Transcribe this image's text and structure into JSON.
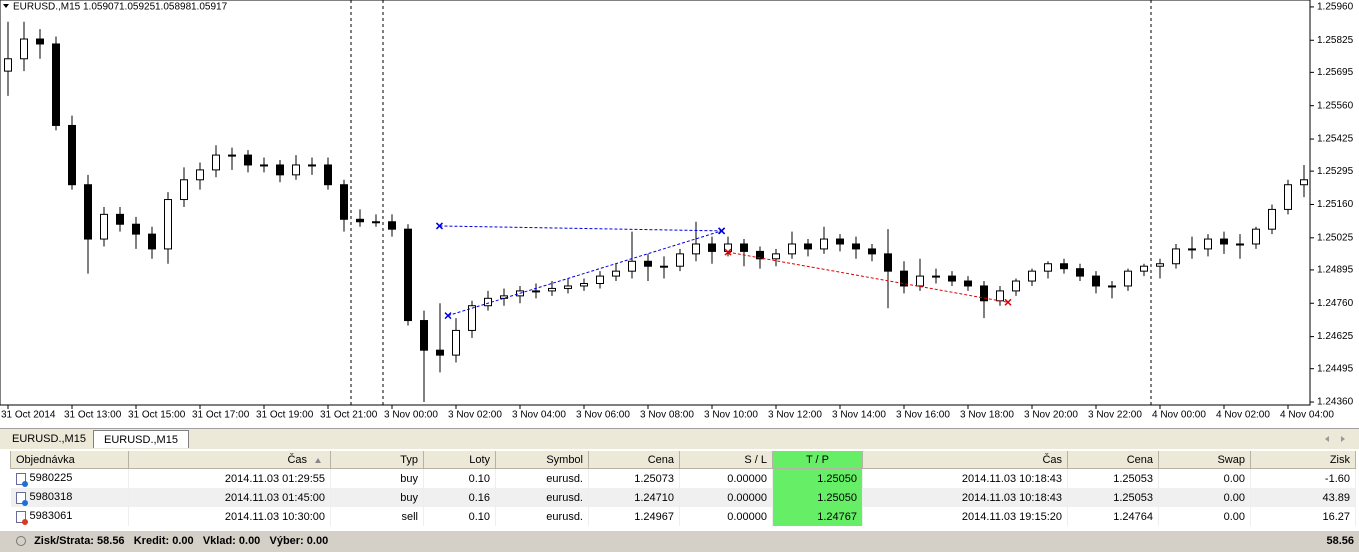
{
  "chart_data": {
    "type": "candlestick",
    "symbol": "EURUSD.,M15",
    "quote": [
      1.05907,
      1.05925,
      1.05898,
      1.05917
    ],
    "ylim": [
      1.24348,
      1.25988
    ],
    "yticks": [
      {
        "value": 1.2596,
        "label": "1.25960"
      },
      1.25825,
      1.25695,
      {
        "value": 1.2556,
        "label": "1.25560"
      },
      1.25425,
      1.25295,
      {
        "value": 1.2516,
        "label": "1.25160"
      },
      1.25025,
      1.24895,
      {
        "value": 1.2476,
        "label": "1.24760"
      },
      1.24625,
      1.24495,
      {
        "value": 1.2436,
        "label": "1.24360"
      }
    ],
    "xticks": [
      {
        "value": 0,
        "label": "31 Oct 2014"
      },
      {
        "value": 4,
        "label": "31 Oct 13:00"
      },
      {
        "value": 8,
        "label": "31 Oct 15:00"
      },
      {
        "value": 12,
        "label": "31 Oct 17:00"
      },
      {
        "value": 16,
        "label": "31 Oct 19:00"
      },
      {
        "value": 20,
        "label": "31 Oct 21:00"
      },
      {
        "value": 24,
        "label": "3 Nov 00:00"
      },
      {
        "value": 28,
        "label": "3 Nov 02:00"
      },
      {
        "value": 32,
        "label": "3 Nov 04:00"
      },
      {
        "value": 36,
        "label": "3 Nov 06:00"
      },
      {
        "value": 40,
        "label": "3 Nov 08:00"
      },
      {
        "value": 44,
        "label": "3 Nov 10:00"
      },
      {
        "value": 48,
        "label": "3 Nov 12:00"
      },
      {
        "value": 52,
        "label": "3 Nov 14:00"
      },
      {
        "value": 56,
        "label": "3 Nov 16:00"
      },
      {
        "value": 60,
        "label": "3 Nov 18:00"
      },
      {
        "value": 64,
        "label": "3 Nov 20:00"
      },
      {
        "value": 68,
        "label": "3 Nov 22:00"
      },
      {
        "value": 72,
        "label": "4 Nov 00:00"
      },
      {
        "value": 76,
        "label": "4 Nov 02:00"
      },
      {
        "value": 80,
        "label": "4 Nov 04:00"
      }
    ],
    "ohlc": [
      [
        1.257,
        1.259,
        1.256,
        1.2575
      ],
      [
        1.2575,
        1.259,
        1.257,
        1.2583
      ],
      [
        1.2583,
        1.2587,
        1.2575,
        1.2581
      ],
      [
        1.2581,
        1.2584,
        1.2546,
        1.2548
      ],
      [
        1.2548,
        1.2552,
        1.2522,
        1.2524
      ],
      [
        1.2524,
        1.2528,
        1.2488,
        1.2502
      ],
      [
        1.2502,
        1.2515,
        1.2499,
        1.2512
      ],
      [
        1.2512,
        1.2515,
        1.2505,
        1.2508
      ],
      [
        1.2508,
        1.2511,
        1.2498,
        1.2504
      ],
      [
        1.2504,
        1.2507,
        1.2494,
        1.2498
      ],
      [
        1.2498,
        1.2521,
        1.2492,
        1.2518
      ],
      [
        1.2518,
        1.2531,
        1.2515,
        1.2526
      ],
      [
        1.2526,
        1.2533,
        1.2522,
        1.253
      ],
      [
        1.253,
        1.254,
        1.2527,
        1.2536
      ],
      [
        1.2536,
        1.2539,
        1.253,
        1.2536
      ],
      [
        1.2536,
        1.2538,
        1.2529,
        1.2532
      ],
      [
        1.2532,
        1.2535,
        1.2529,
        1.2532
      ],
      [
        1.2532,
        1.2534,
        1.2525,
        1.2528
      ],
      [
        1.2528,
        1.2536,
        1.2526,
        1.2532
      ],
      [
        1.2532,
        1.2535,
        1.2528,
        1.2532
      ],
      [
        1.2532,
        1.2535,
        1.2522,
        1.2524
      ],
      [
        1.2524,
        1.2526,
        1.2505,
        1.251
      ],
      [
        1.251,
        1.2514,
        1.2507,
        1.2509
      ],
      [
        1.2509,
        1.2512,
        1.2507,
        1.2509
      ],
      [
        1.2509,
        1.2512,
        1.2503,
        1.2506
      ],
      [
        1.2506,
        1.2508,
        1.2467,
        1.2469
      ],
      [
        1.2469,
        1.2473,
        1.2436,
        1.2457
      ],
      [
        1.2457,
        1.2476,
        1.2448,
        1.2455
      ],
      [
        1.2455,
        1.247,
        1.2452,
        1.2465
      ],
      [
        1.2465,
        1.2477,
        1.2462,
        1.2475
      ],
      [
        1.2475,
        1.2481,
        1.2473,
        1.2478
      ],
      [
        1.2478,
        1.2482,
        1.2475,
        1.2479
      ],
      [
        1.2479,
        1.2483,
        1.2476,
        1.2481
      ],
      [
        1.2481,
        1.2484,
        1.2478,
        1.2481
      ],
      [
        1.2481,
        1.2485,
        1.2479,
        1.2482
      ],
      [
        1.2482,
        1.2486,
        1.248,
        1.2483
      ],
      [
        1.2483,
        1.2486,
        1.2481,
        1.2484
      ],
      [
        1.2484,
        1.2489,
        1.2482,
        1.2487
      ],
      [
        1.2487,
        1.2492,
        1.2485,
        1.2489
      ],
      [
        1.2489,
        1.2505,
        1.2486,
        1.2493
      ],
      [
        1.2493,
        1.2496,
        1.2485,
        1.2491
      ],
      [
        1.2491,
        1.2495,
        1.2486,
        1.2491
      ],
      [
        1.2491,
        1.2498,
        1.2489,
        1.2496
      ],
      [
        1.2496,
        1.2509,
        1.2493,
        1.25
      ],
      [
        1.25,
        1.2503,
        1.2492,
        1.2497
      ],
      [
        1.2497,
        1.2503,
        1.2495,
        1.25
      ],
      [
        1.25,
        1.2502,
        1.2491,
        1.2497
      ],
      [
        1.2497,
        1.2499,
        1.249,
        1.2494
      ],
      [
        1.2494,
        1.2498,
        1.2491,
        1.2496
      ],
      [
        1.2496,
        1.2505,
        1.2494,
        1.25
      ],
      [
        1.25,
        1.2502,
        1.2495,
        1.2498
      ],
      [
        1.2498,
        1.2507,
        1.2496,
        1.2502
      ],
      [
        1.2502,
        1.2504,
        1.2497,
        1.25
      ],
      [
        1.25,
        1.2503,
        1.2494,
        1.2498
      ],
      [
        1.2498,
        1.25,
        1.2493,
        1.2496
      ],
      [
        1.2496,
        1.2506,
        1.2474,
        1.2489
      ],
      [
        1.2489,
        1.2493,
        1.248,
        1.2483
      ],
      [
        1.2483,
        1.2494,
        1.2481,
        1.2487
      ],
      [
        1.2487,
        1.249,
        1.2484,
        1.2487
      ],
      [
        1.2487,
        1.2489,
        1.2483,
        1.2485
      ],
      [
        1.2485,
        1.2487,
        1.2481,
        1.2483
      ],
      [
        1.2483,
        1.2485,
        1.247,
        1.2477
      ],
      [
        1.2477,
        1.2483,
        1.2475,
        1.2481
      ],
      [
        1.2481,
        1.2486,
        1.2479,
        1.2485
      ],
      [
        1.2485,
        1.249,
        1.2483,
        1.2489
      ],
      [
        1.2489,
        1.2493,
        1.2486,
        1.2492
      ],
      [
        1.2492,
        1.2494,
        1.2488,
        1.249
      ],
      [
        1.249,
        1.2492,
        1.2485,
        1.2487
      ],
      [
        1.2487,
        1.2489,
        1.248,
        1.2483
      ],
      [
        1.2483,
        1.2485,
        1.2478,
        1.2483
      ],
      [
        1.2483,
        1.249,
        1.2481,
        1.2489
      ],
      [
        1.2489,
        1.2492,
        1.2487,
        1.2491
      ],
      [
        1.2491,
        1.2494,
        1.2486,
        1.2492
      ],
      [
        1.2492,
        1.25,
        1.249,
        1.2498
      ],
      [
        1.2498,
        1.2503,
        1.2494,
        1.2498
      ],
      [
        1.2498,
        1.2504,
        1.2495,
        1.2502
      ],
      [
        1.2502,
        1.2505,
        1.2496,
        1.25
      ],
      [
        1.25,
        1.2504,
        1.2494,
        1.25
      ],
      [
        1.25,
        1.2507,
        1.2498,
        1.2506
      ],
      [
        1.2506,
        1.2516,
        1.2504,
        1.2514
      ],
      [
        1.2514,
        1.2526,
        1.2512,
        1.2524
      ],
      [
        1.2524,
        1.2532,
        1.2519,
        1.2526
      ]
    ]
  },
  "tabs": [
    "EURUSD.,M15",
    "EURUSD.,M15"
  ],
  "table": {
    "columns": [
      "Objednávka",
      "Čas",
      "Typ",
      "Loty",
      "Symbol",
      "Cena",
      "S / L",
      "T / P",
      "Čas",
      "Cena",
      "Swap",
      "Zisk"
    ],
    "rows": [
      [
        "5980225",
        "2014.11.03 01:29:55",
        "buy",
        "0.10",
        "eurusd.",
        "1.25073",
        "0.00000",
        "1.25050",
        "2014.11.03 10:18:43",
        "1.25053",
        "0.00",
        "-1.60"
      ],
      [
        "5980318",
        "2014.11.03 01:45:00",
        "buy",
        "0.16",
        "eurusd.",
        "1.24710",
        "0.00000",
        "1.25050",
        "2014.11.03 10:18:43",
        "1.25053",
        "0.00",
        "43.89"
      ],
      [
        "5983061",
        "2014.11.03 10:30:00",
        "sell",
        "0.10",
        "eurusd.",
        "1.24967",
        "0.00000",
        "1.24767",
        "2014.11.03 19:15:20",
        "1.24764",
        "0.00",
        "16.27"
      ]
    ],
    "footer": [
      "Zisk/Strata: 58.56",
      "Kredit: 0.00",
      "Vklad: 0.00",
      "Výber: 0.00"
    ],
    "total": "58.56"
  }
}
